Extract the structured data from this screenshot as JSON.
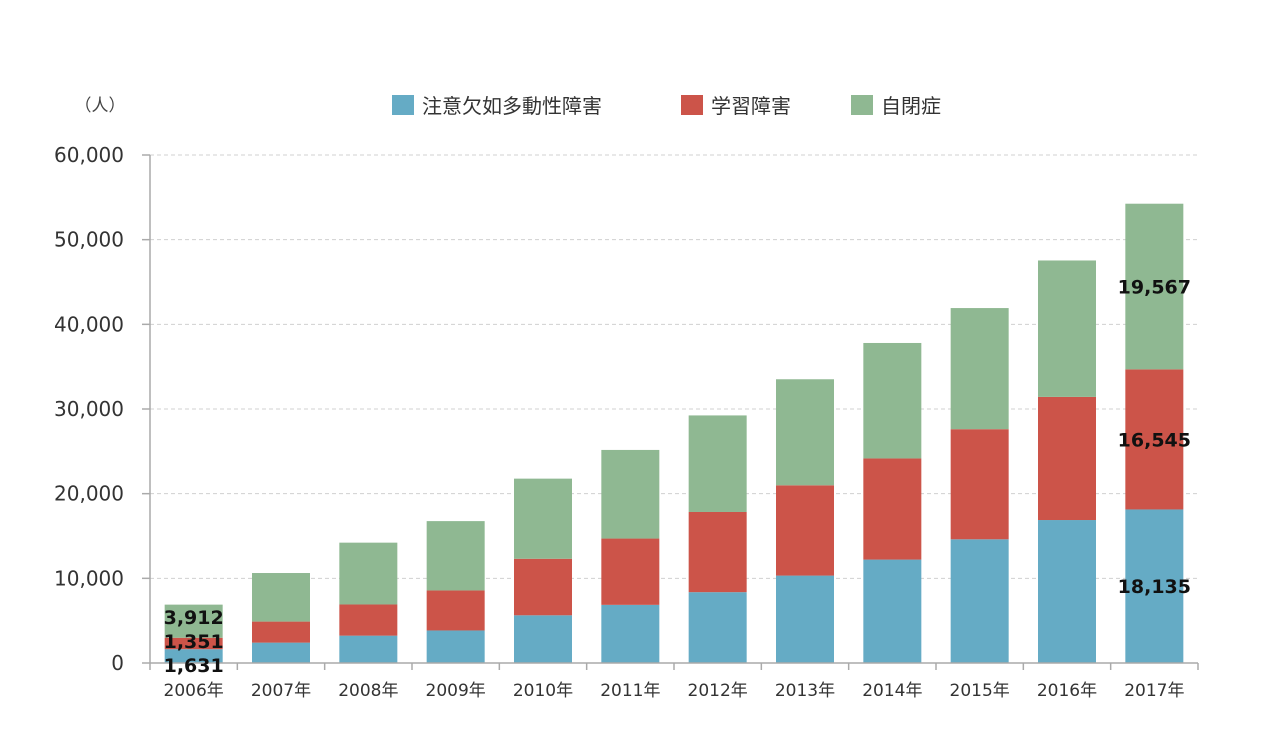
{
  "chart_data": {
    "type": "bar",
    "stacked": true,
    "title": "",
    "xlabel": "",
    "ylabel": "（人）",
    "ylim": [
      0,
      60000
    ],
    "yticks": [
      0,
      10000,
      20000,
      30000,
      40000,
      50000,
      60000
    ],
    "ytick_labels": [
      "0",
      "10,000",
      "20,000",
      "30,000",
      "40,000",
      "50,000",
      "60,000"
    ],
    "grid": true,
    "legend_position": "top",
    "categories": [
      "2006年",
      "2007年",
      "2008年",
      "2009年",
      "2010年",
      "2011年",
      "2012年",
      "2013年",
      "2014年",
      "2015年",
      "2016年",
      "2017年"
    ],
    "series": [
      {
        "name": "注意欠如多動性障害",
        "color": "#65abc5",
        "values": [
          1631,
          2406,
          3230,
          3843,
          5634,
          6867,
          8366,
          10324,
          12213,
          14609,
          16886,
          18135
        ]
      },
      {
        "name": "学習障害",
        "color": "#cc5449",
        "values": [
          1351,
          2485,
          3682,
          4726,
          6678,
          7831,
          9470,
          10661,
          11948,
          13005,
          14541,
          16545
        ]
      },
      {
        "name": "自閉症",
        "color": "#8fb892",
        "values": [
          3912,
          5737,
          7302,
          8190,
          9463,
          10467,
          11405,
          12528,
          13637,
          14308,
          16116,
          19567
        ]
      }
    ],
    "data_labels": [
      {
        "text": "1,631",
        "category": "2006年",
        "series": "注意欠如多動性障害"
      },
      {
        "text": "1,351",
        "category": "2006年",
        "series": "学習障害"
      },
      {
        "text": "3,912",
        "category": "2006年",
        "series": "自閉症"
      },
      {
        "text": "18,135",
        "category": "2017年",
        "series": "注意欠如多動性障害"
      },
      {
        "text": "16,545",
        "category": "2017年",
        "series": "学習障害"
      },
      {
        "text": "19,567",
        "category": "2017年",
        "series": "自閉症"
      }
    ]
  }
}
